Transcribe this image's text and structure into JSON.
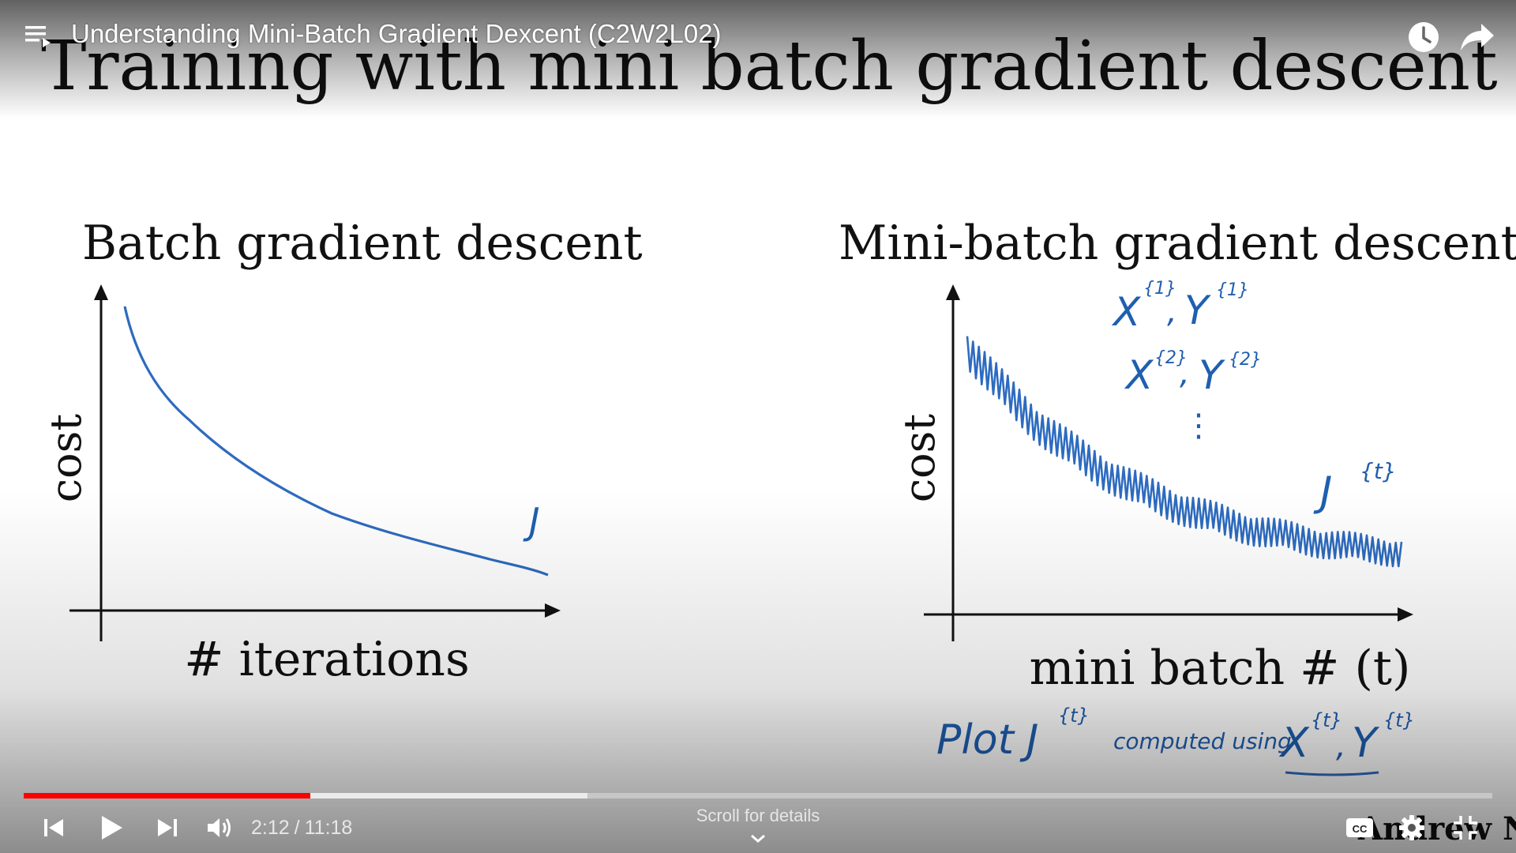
{
  "video": {
    "title": "Understanding Mini-Batch Gradient Dexcent (C2W2L02)"
  },
  "slide": {
    "heading": "Training with mini batch gradient descent",
    "left_plot": {
      "title": "Batch gradient descent",
      "ylabel": "cost",
      "xlabel": "# iterations",
      "curve_label": "J"
    },
    "right_plot": {
      "title": "Mini-batch gradient descent",
      "ylabel": "cost",
      "xlabel": "mini batch # (t)",
      "note_1_base": "X",
      "note_1_sup": "{1}",
      "note_1_base_b": "Y",
      "note_1_sup_b": "{1}",
      "note_2_base": "X",
      "note_2_sup": "{2}",
      "note_2_base_b": "Y",
      "note_2_sup_b": "{2}",
      "note_dots": "⋮",
      "curve_label": "J",
      "curve_label_sup": "{t}"
    },
    "footnote": {
      "plot": "Plot",
      "j": "J",
      "j_sup": "{t}",
      "computed": "computed using",
      "x": "X",
      "x_sup": "{t}",
      "y": "Y",
      "y_sup": "{t}"
    },
    "watermark": "Andrew Ng"
  },
  "player": {
    "current_time": "2:12",
    "separator": "/",
    "duration": "11:18",
    "played_fraction": 0.195,
    "buffered_fraction": 0.384,
    "scroll_hint": "Scroll for details",
    "accent_color": "#ff0000"
  }
}
